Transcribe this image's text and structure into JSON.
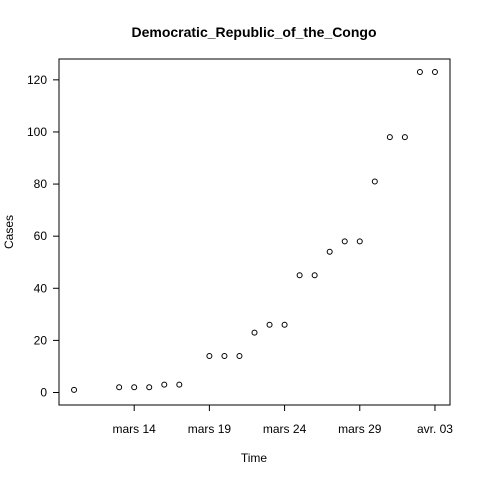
{
  "chart_data": {
    "type": "scatter",
    "title": "Democratic_Republic_of_the_Congo",
    "xlabel": "Time",
    "ylabel": "Cases",
    "x": [
      "2020-03-10",
      "2020-03-11",
      "2020-03-12",
      "2020-03-13",
      "2020-03-14",
      "2020-03-15",
      "2020-03-16",
      "2020-03-17",
      "2020-03-18",
      "2020-03-19",
      "2020-03-20",
      "2020-03-21",
      "2020-03-22",
      "2020-03-23",
      "2020-03-24",
      "2020-03-25",
      "2020-03-26",
      "2020-03-27",
      "2020-03-28",
      "2020-03-29",
      "2020-03-30",
      "2020-03-31",
      "2020-04-01",
      "2020-04-02",
      "2020-04-03"
    ],
    "values": [
      1,
      null,
      null,
      2,
      2,
      2,
      3,
      3,
      null,
      14,
      14,
      14,
      23,
      26,
      26,
      45,
      45,
      54,
      58,
      58,
      81,
      98,
      98,
      123,
      123
    ],
    "xticks": [
      {
        "date": "2020-03-14",
        "label": "mars 14"
      },
      {
        "date": "2020-03-19",
        "label": "mars 19"
      },
      {
        "date": "2020-03-24",
        "label": "mars 24"
      },
      {
        "date": "2020-03-29",
        "label": "mars 29"
      },
      {
        "date": "2020-04-03",
        "label": "avr. 03"
      }
    ],
    "yticks": [
      0,
      20,
      40,
      60,
      80,
      100,
      120
    ],
    "xlim": [
      "2020-03-09",
      "2020-04-04"
    ],
    "ylim": [
      -4.8,
      128
    ],
    "grid": false,
    "marker": "open-circle",
    "colors": {
      "points": "#000000",
      "axes": "#000000",
      "background": "#ffffff"
    }
  }
}
